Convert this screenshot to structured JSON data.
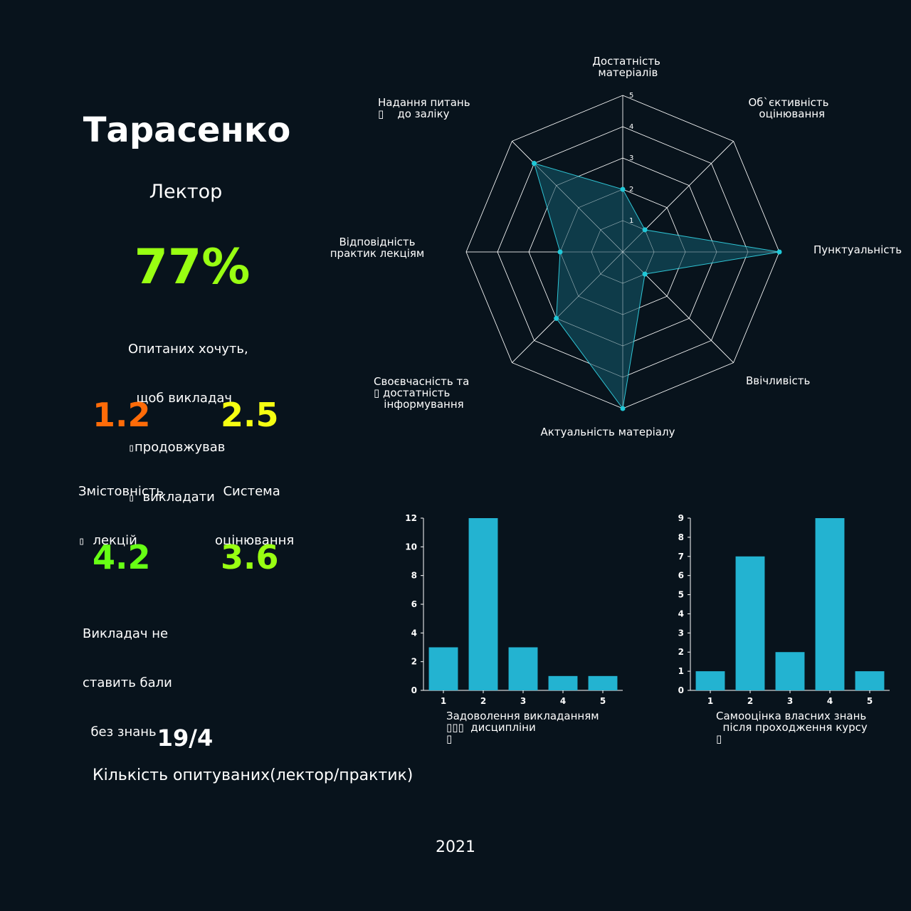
{
  "lecturer": {
    "name": "Тарасенко",
    "role": "Лектор",
    "continue_percent": "77%",
    "continue_caption": [
      "Опитаних хочуть,",
      "  щоб викладач",
      "",
      "  викладати"
    ],
    "continue_caption_line3": "продовжував"
  },
  "scores": [
    {
      "value": "1.2",
      "label_1": "Змістовність",
      "label_2": "  лекцій",
      "color": "#ff6b08"
    },
    {
      "value": "2.5",
      "label_1": "  Система",
      "label_2": "оцінювання",
      "color": "#f6ff12"
    },
    {
      "value": "4.2",
      "label_1": "Викладач не",
      "label_2": "ставить бали",
      "label_3": "  без знань",
      "color": "#67ff14"
    },
    {
      "value": "3.6",
      "color": "#99ff12"
    }
  ],
  "respondents": {
    "value": "19/4",
    "label": "Кількість опитуваних(лектор/практик)"
  },
  "year": "2021",
  "chart_data": [
    {
      "type": "radar",
      "axes": [
        "Достатність матеріалів",
        "Об`єктивність оцінювання",
        "Пунктуальність",
        "Ввічливість",
        "Актуальність матеріалу",
        "Своєвчасність та достатність інформування",
        "Відповідність практик лекціям",
        "Надання питань до заліку"
      ],
      "axis_label_lines": [
        [
          "Достатність",
          " матеріалів"
        ],
        [
          "Об`єктивність",
          "  оцінювання"
        ],
        [
          "Пунктуальність"
        ],
        [
          "Ввічливість"
        ],
        [
          "Актуальність матеріалу"
        ],
        [
          "Своєвчасність та",
          "достатність",
          "   інформування"
        ],
        [
          "Відповідність",
          "практик лекціям"
        ],
        [
          "Надання питань",
          "   до заліку"
        ]
      ],
      "values": [
        2,
        1,
        5,
        1,
        5,
        3,
        2,
        4
      ],
      "rlim": [
        0,
        5
      ],
      "rticks": [
        "1",
        "2",
        "3",
        "4",
        "5"
      ],
      "fill_color": "#10404f",
      "point_color": "#20c8d8"
    },
    {
      "type": "bar",
      "categories": [
        "1",
        "2",
        "3",
        "4",
        "5"
      ],
      "values": [
        3,
        12,
        3,
        1,
        1
      ],
      "ylim": [
        0,
        12
      ],
      "yticks": [
        "0",
        "2",
        "4",
        "6",
        "8",
        "10",
        "12"
      ],
      "xlabel_lines": [
        "Задоволення викладанням",
        "  дисципліни",
        ""
      ],
      "color": "#23b3d1"
    },
    {
      "type": "bar",
      "categories": [
        "1",
        "2",
        "3",
        "4",
        "5"
      ],
      "values": [
        1,
        7,
        2,
        9,
        1
      ],
      "ylim": [
        0,
        9
      ],
      "yticks": [
        "0",
        "1",
        "2",
        "3",
        "4",
        "5",
        "6",
        "7",
        "8",
        "9"
      ],
      "xlabel_lines": [
        "Самооцінка власних знань",
        "  після проходження курсу",
        ""
      ],
      "color": "#23b3d1"
    }
  ]
}
